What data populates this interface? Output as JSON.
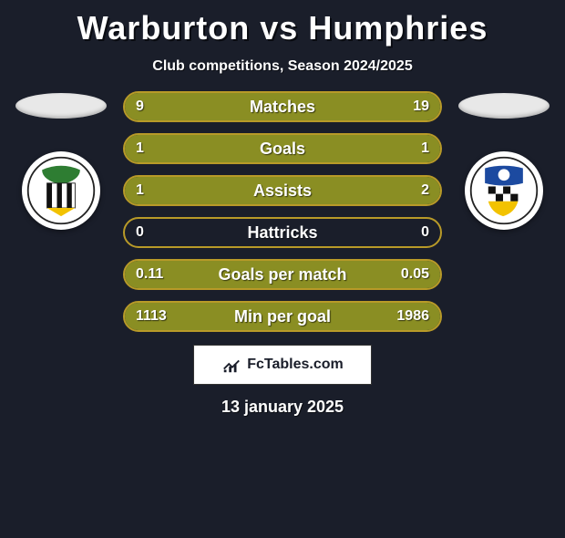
{
  "title": "Warburton vs Humphries",
  "subtitle": "Club competitions, Season 2024/2025",
  "date": "13 january 2025",
  "footer_brand": "FcTables.com",
  "colors": {
    "title": "#ffffff",
    "title_shadow": "#0a0c12",
    "background": "#1a1e2a",
    "bar_border": "#b89a28",
    "bar_fill": "#8a8e23",
    "ellipse": "#e8e8e8",
    "crest_bg": "#ffffff"
  },
  "bars": [
    {
      "label": "Matches",
      "left": "9",
      "right": "19",
      "left_pct": 32,
      "right_pct": 68
    },
    {
      "label": "Goals",
      "left": "1",
      "right": "1",
      "left_pct": 50,
      "right_pct": 50
    },
    {
      "label": "Assists",
      "left": "1",
      "right": "2",
      "left_pct": 33,
      "right_pct": 67
    },
    {
      "label": "Hattricks",
      "left": "0",
      "right": "0",
      "left_pct": 0,
      "right_pct": 0
    },
    {
      "label": "Goals per match",
      "left": "0.11",
      "right": "0.05",
      "left_pct": 69,
      "right_pct": 31
    },
    {
      "label": "Min per goal",
      "left": "1113",
      "right": "1986",
      "left_pct": 36,
      "right_pct": 64
    }
  ],
  "left_crest_colors": {
    "outer": "#2e7d32",
    "stripe1": "#111",
    "stripe2": "#fff",
    "accent": "#f2c200"
  },
  "right_crest_colors": {
    "outer": "#1c4aa0",
    "checker1": "#111",
    "checker2": "#fff",
    "accent": "#f2c200"
  }
}
